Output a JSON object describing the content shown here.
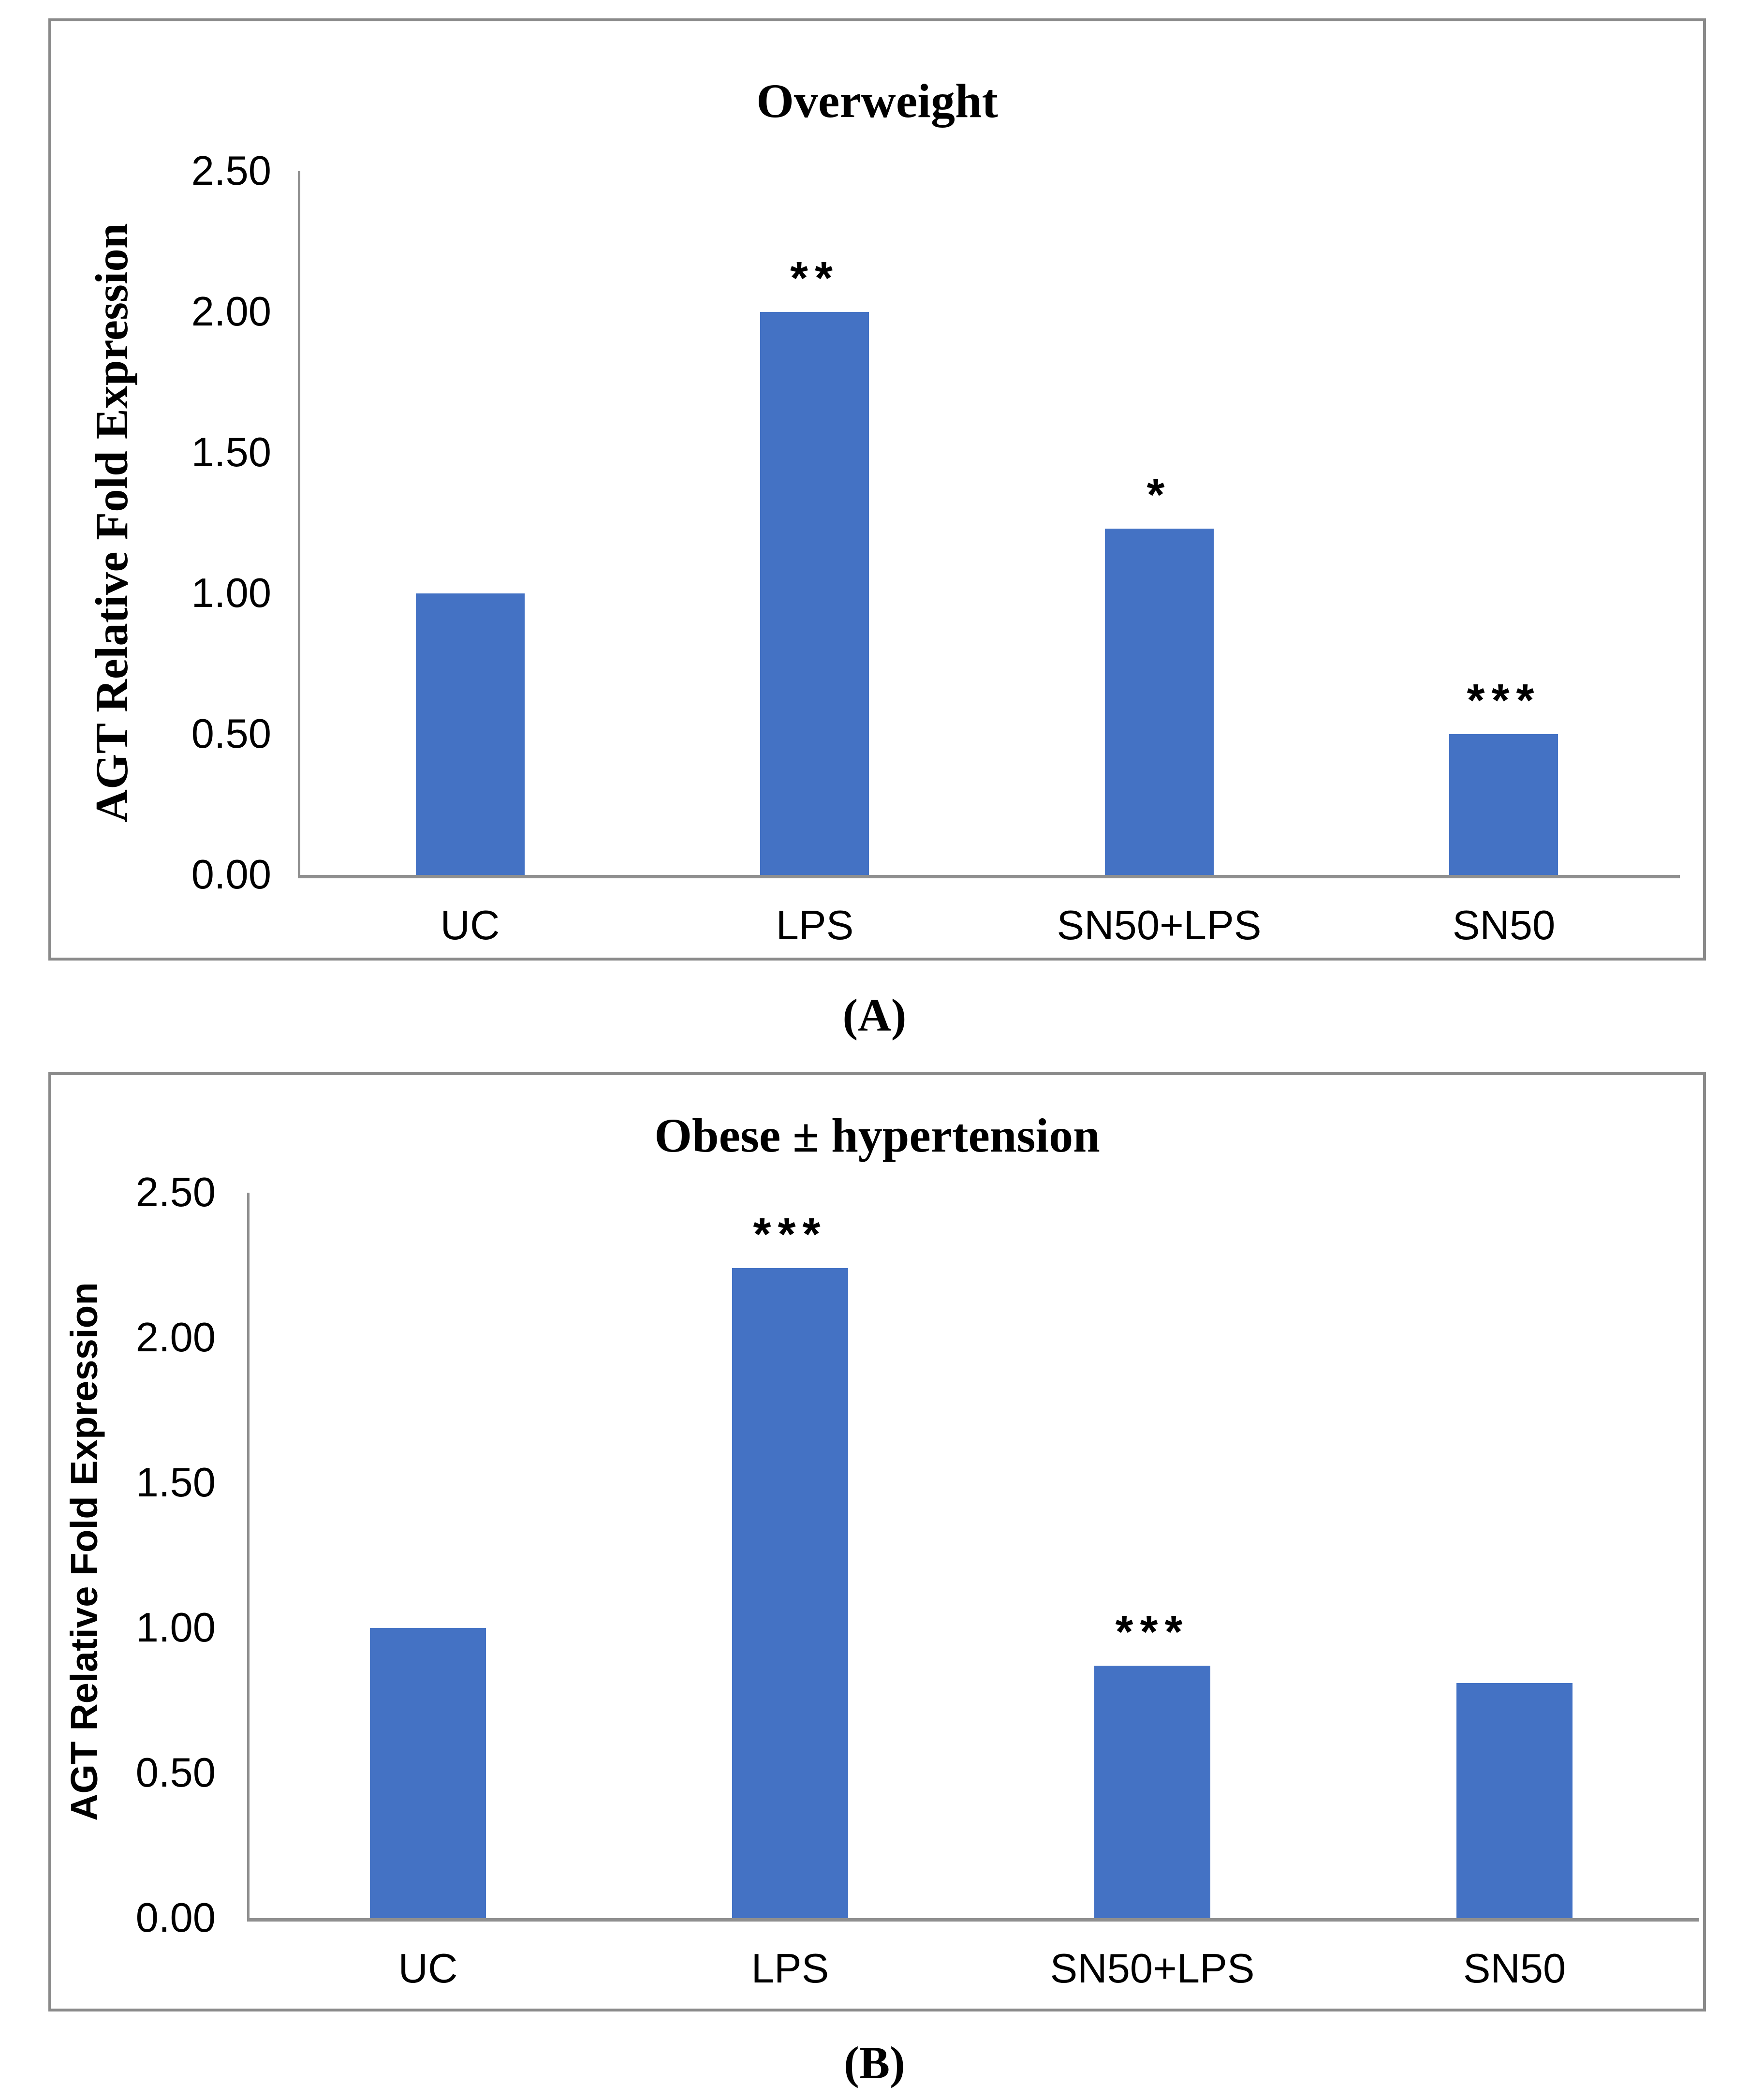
{
  "figure": {
    "captions": [
      "(A)",
      "(B)"
    ],
    "colors": {
      "bar": "#4472C4",
      "axis": "#8F8F8F",
      "panel_border": "#8A8A8A",
      "text": "#000000"
    }
  },
  "chart_data": [
    {
      "type": "bar",
      "title": "Overweight",
      "xlabel": "",
      "ylabel": "AGT Relative Fold Expression",
      "categories": [
        "UC",
        "LPS",
        "SN50+LPS",
        "SN50"
      ],
      "values": [
        1.0,
        2.0,
        1.23,
        0.5
      ],
      "significance": [
        "",
        "**",
        "*",
        "***"
      ],
      "ylim": [
        0,
        2.5
      ],
      "yticks": [
        "2.50",
        "2.00",
        "1.50",
        "1.00",
        "0.50",
        "0.00"
      ],
      "grid": false,
      "legend": false
    },
    {
      "type": "bar",
      "title": "Obese ± hypertension",
      "xlabel": "",
      "ylabel": "AGT Relative Fold Expression",
      "categories": [
        "UC",
        "LPS",
        "SN50+LPS",
        "SN50"
      ],
      "values": [
        1.0,
        2.24,
        0.87,
        0.81
      ],
      "significance": [
        "",
        "***",
        "***",
        ""
      ],
      "ylim": [
        0,
        2.5
      ],
      "yticks": [
        "2.50",
        "2.00",
        "1.50",
        "1.00",
        "0.50",
        "0.00"
      ],
      "grid": false,
      "legend": false
    }
  ]
}
